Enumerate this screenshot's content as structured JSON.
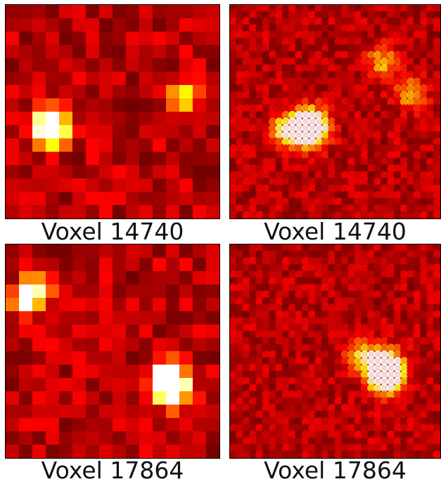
{
  "panels": [
    {
      "caption": "Voxel 14740",
      "style": "coarse",
      "grid": 16,
      "hotspot": [
        3.4,
        9.2
      ],
      "hotspot_scale": 1.2,
      "secondary": [
        [
          13.2,
          6.8,
          0.55
        ]
      ],
      "seed": 11
    },
    {
      "caption": "Voxel 14740",
      "style": "smooth",
      "grid": 32,
      "hotspot": [
        6.0,
        9.2
      ],
      "hotspot_scale": 1.6,
      "secondary": [
        [
          11.6,
          4.3,
          0.45
        ],
        [
          13.8,
          6.6,
          0.5
        ],
        [
          4.2,
          9.4,
          0.6
        ]
      ],
      "seed": 23
    },
    {
      "caption": "Voxel 17864",
      "style": "coarse",
      "grid": 16,
      "hotspot": [
        12.2,
        10.3
      ],
      "hotspot_scale": 1.6,
      "secondary": [
        [
          1.5,
          4.2,
          0.7
        ],
        [
          2.2,
          3.4,
          0.55
        ],
        [
          12.5,
          11.2,
          0.45
        ]
      ],
      "seed": 37
    },
    {
      "caption": "Voxel 17864",
      "style": "smooth",
      "grid": 32,
      "hotspot": [
        11.7,
        9.3
      ],
      "hotspot_scale": 1.6,
      "secondary": [
        [
          12.0,
          10.2,
          0.55
        ],
        [
          9.8,
          8.3,
          0.45
        ]
      ],
      "seed": 53
    }
  ],
  "colormap": "hot",
  "colors": {
    "background": "#ffffff",
    "border": "#000000",
    "caption": "#111111"
  }
}
